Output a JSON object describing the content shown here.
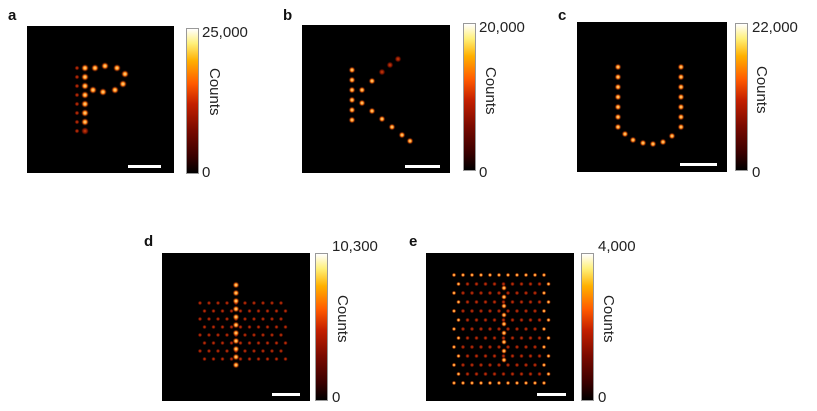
{
  "panels": [
    {
      "id": "a",
      "label": "a",
      "cbar_max": "25,000",
      "cbar_min": "0",
      "cbar_label": "Counts",
      "shape": "letter P"
    },
    {
      "id": "b",
      "label": "b",
      "cbar_max": "20,000",
      "cbar_min": "0",
      "cbar_label": "Counts",
      "shape": "letter K"
    },
    {
      "id": "c",
      "label": "c",
      "cbar_max": "22,000",
      "cbar_min": "0",
      "cbar_label": "Counts",
      "shape": "letter U"
    },
    {
      "id": "d",
      "label": "d",
      "cbar_max": "10,300",
      "cbar_min": "0",
      "cbar_label": "Counts",
      "shape": "vertical line on hexagonal patch"
    },
    {
      "id": "e",
      "label": "e",
      "cbar_max": "4,000",
      "cbar_min": "0",
      "cbar_label": "Counts",
      "shape": "rectangular frame with inner pattern"
    }
  ],
  "colors": {
    "background": "#000000",
    "colormap": "hot",
    "scale_bar": "#ffffff"
  }
}
